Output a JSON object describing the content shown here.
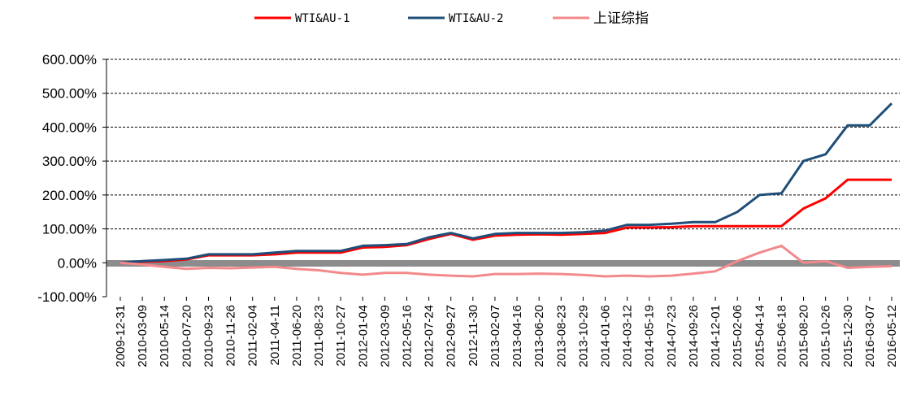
{
  "chart_data": {
    "type": "line",
    "legend": "top",
    "ylim": [
      -100,
      600
    ],
    "yticks": [
      "600.00%",
      "500.00%",
      "400.00%",
      "300.00%",
      "200.00%",
      "100.00%",
      "0.00%",
      "-100.00%"
    ],
    "ytick_values": [
      600,
      500,
      400,
      300,
      200,
      100,
      0,
      -100
    ],
    "grid": "horizontal-dashed",
    "x": [
      "2009-12-31",
      "2010-03-09",
      "2010-05-14",
      "2010-07-20",
      "2010-09-23",
      "2010-11-26",
      "2011-02-04",
      "2011-04-11",
      "2011-06-20",
      "2011-08-23",
      "2011-10-27",
      "2012-01-04",
      "2012-03-09",
      "2012-05-16",
      "2012-07-24",
      "2012-09-27",
      "2012-11-30",
      "2013-02-07",
      "2013-04-16",
      "2013-06-20",
      "2013-08-23",
      "2013-10-29",
      "2014-01-06",
      "2014-03-12",
      "2014-05-19",
      "2014-07-23",
      "2014-09-26",
      "2014-12-01",
      "2015-02-06",
      "2015-04-14",
      "2015-06-18",
      "2015-08-20",
      "2015-10-26",
      "2015-12-30",
      "2016-03-07",
      "2016-05-12"
    ],
    "series": [
      {
        "name": "WTI&AU-1",
        "color": "#ff0000",
        "values": [
          0,
          3,
          5,
          10,
          22,
          22,
          22,
          25,
          30,
          30,
          30,
          45,
          47,
          52,
          70,
          85,
          68,
          80,
          83,
          84,
          83,
          85,
          88,
          104,
          104,
          105,
          108,
          108,
          108,
          108,
          108,
          160,
          190,
          245,
          245,
          245
        ]
      },
      {
        "name": "WTI&AU-2",
        "color": "#1f4e79",
        "values": [
          0,
          5,
          8,
          12,
          25,
          25,
          25,
          30,
          35,
          35,
          35,
          50,
          52,
          55,
          75,
          88,
          72,
          85,
          88,
          88,
          88,
          90,
          95,
          112,
          112,
          115,
          120,
          120,
          150,
          200,
          205,
          300,
          320,
          405,
          405,
          470
        ]
      },
      {
        "name": "上证综指",
        "color": "#f4898b",
        "values": [
          0,
          -5,
          -12,
          -18,
          -15,
          -16,
          -14,
          -12,
          -18,
          -22,
          -30,
          -35,
          -30,
          -30,
          -35,
          -38,
          -40,
          -33,
          -33,
          -32,
          -33,
          -36,
          -40,
          -38,
          -40,
          -38,
          -32,
          -25,
          5,
          30,
          50,
          0,
          5,
          -15,
          -12,
          -10
        ]
      }
    ]
  }
}
